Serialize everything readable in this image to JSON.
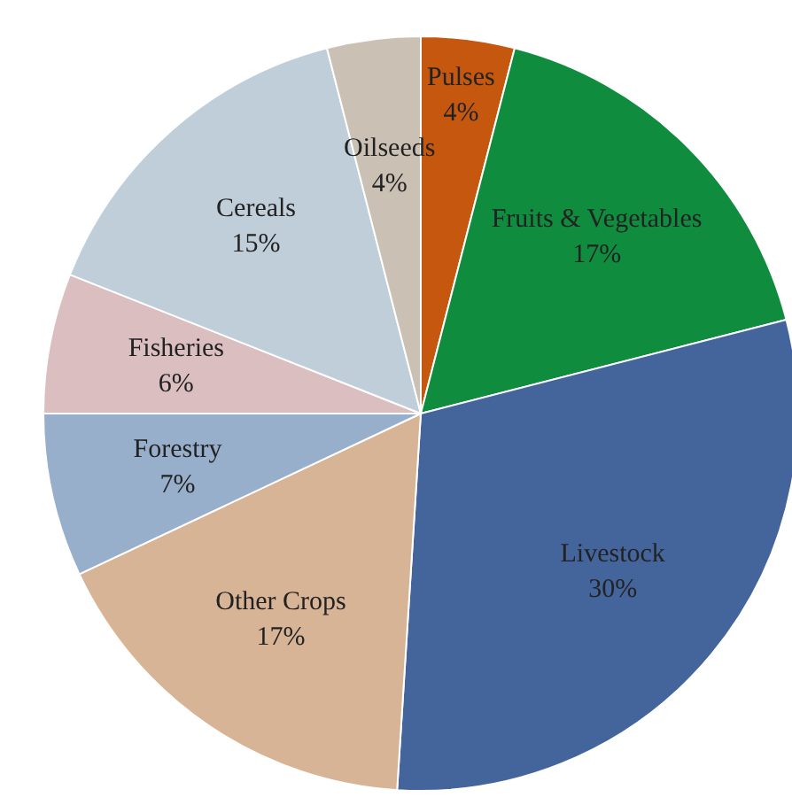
{
  "chart_data": {
    "type": "pie",
    "categories": [
      "Pulses",
      "Fruits & Vegetables",
      "Livestock",
      "Other Crops",
      "Forestry",
      "Fisheries",
      "Cereals",
      "Oilseeds"
    ],
    "values": [
      4,
      17,
      30,
      17,
      7,
      6,
      15,
      4
    ],
    "value_labels": [
      "4%",
      "17%",
      "30%",
      "17%",
      "7%",
      "6%",
      "15%",
      "4%"
    ],
    "colors": [
      "#c5570f",
      "#0f8c3e",
      "#44659c",
      "#d8b496",
      "#97afcb",
      "#dbbfc0",
      "#bfced9",
      "#cac0b3"
    ]
  }
}
